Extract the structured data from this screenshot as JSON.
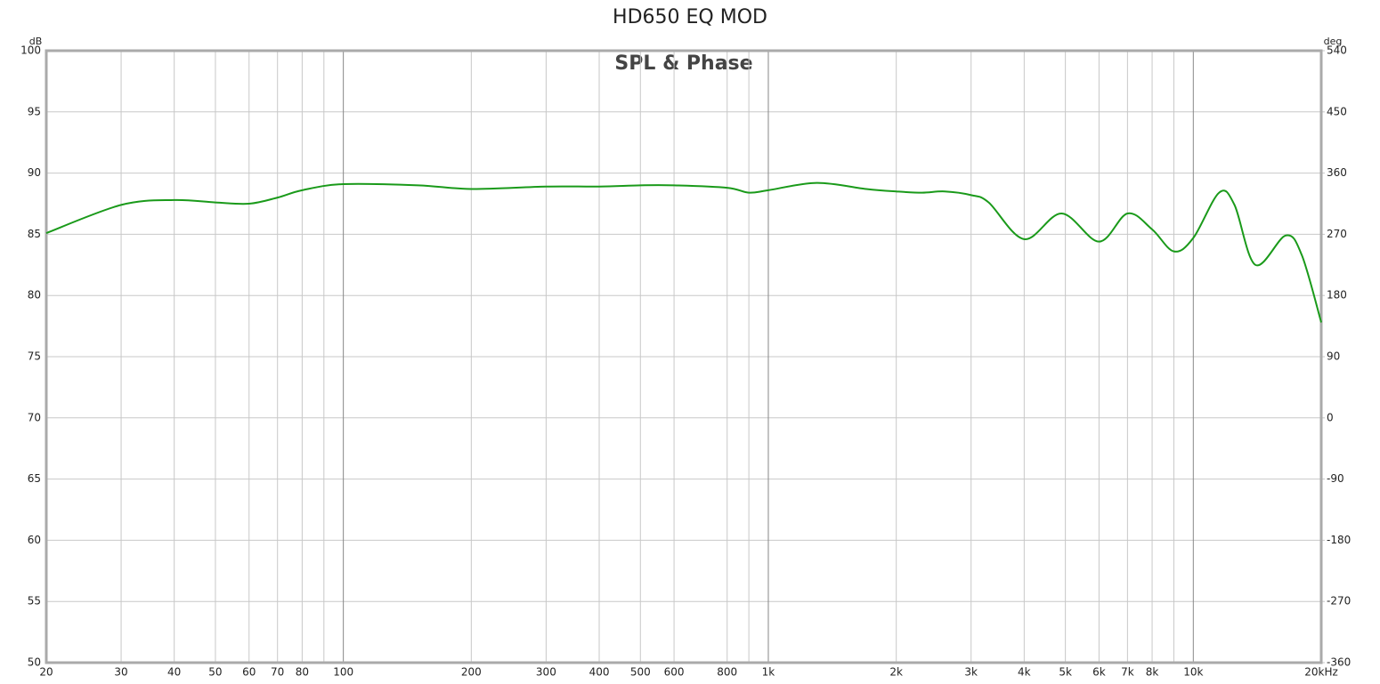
{
  "chart_data": {
    "type": "line",
    "title": "HD650 EQ MOD",
    "subtitle": "SPL & Phase",
    "y_label": "dB",
    "y2_label": "deg",
    "xlog": true,
    "grid": true,
    "xlim": [
      20,
      20000
    ],
    "ylim": [
      50,
      100
    ],
    "y2lim": [
      -360,
      540
    ],
    "xticks": [
      20,
      30,
      40,
      50,
      60,
      70,
      80,
      100,
      200,
      300,
      400,
      500,
      600,
      800,
      {
        "value": 1000,
        "label": "1k"
      },
      {
        "value": 2000,
        "label": "2k"
      },
      {
        "value": 3000,
        "label": "3k"
      },
      {
        "value": 4000,
        "label": "4k"
      },
      {
        "value": 5000,
        "label": "5k"
      },
      {
        "value": 6000,
        "label": "6k"
      },
      {
        "value": 7000,
        "label": "7k"
      },
      {
        "value": 8000,
        "label": "8k"
      },
      {
        "value": 10000,
        "label": "10k"
      },
      {
        "value": 20000,
        "label": "20kHz"
      }
    ],
    "x_unlabeled_grid": [
      90,
      900,
      9000
    ],
    "yticks": [
      50,
      55,
      60,
      65,
      70,
      75,
      80,
      85,
      90,
      95,
      100
    ],
    "y2ticks": [
      -360,
      -270,
      -180,
      -90,
      0,
      90,
      180,
      270,
      360,
      450,
      540
    ],
    "x": [
      20,
      30,
      40,
      50,
      60,
      70,
      80,
      100,
      150,
      200,
      300,
      400,
      500,
      600,
      800,
      900,
      1000,
      1300,
      1700,
      2000,
      2300,
      2600,
      3000,
      3300,
      4000,
      4900,
      6000,
      7000,
      8000,
      9000,
      10000,
      11500,
      12500,
      14000,
      16500,
      18000,
      20000
    ],
    "series": [
      {
        "name": "SPL",
        "color": "#1a9a1a",
        "axis": "y",
        "values": [
          85.1,
          87.4,
          87.8,
          87.6,
          87.5,
          88.0,
          88.6,
          89.1,
          89.0,
          88.7,
          88.9,
          88.9,
          89.0,
          89.0,
          88.8,
          88.4,
          88.6,
          89.2,
          88.7,
          88.5,
          88.4,
          88.5,
          88.2,
          87.6,
          84.6,
          86.7,
          84.4,
          86.7,
          85.4,
          83.6,
          84.7,
          88.4,
          87.4,
          82.5,
          84.9,
          83.3,
          77.8
        ]
      }
    ]
  }
}
